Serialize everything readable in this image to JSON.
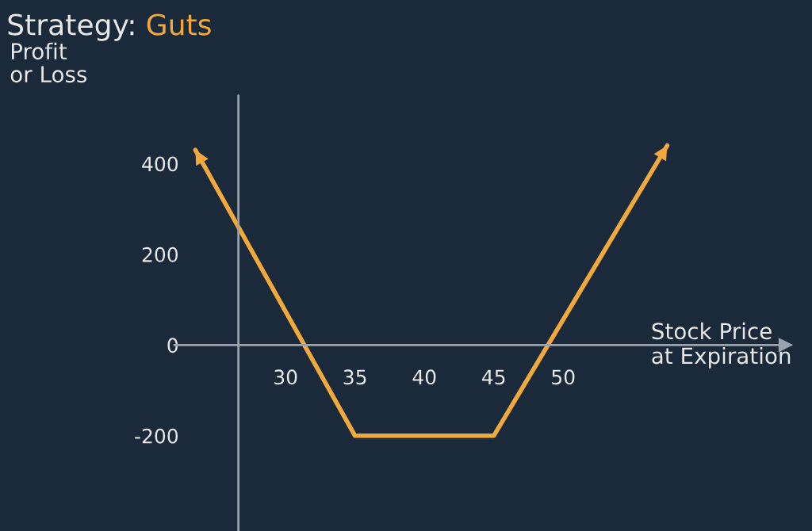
{
  "chart_data": {
    "type": "line",
    "title": "Strategy:",
    "subtitle": "Guts",
    "xlabel": "Stock Price\nat Expiration",
    "ylabel": "Profit\nor Loss",
    "series": [
      {
        "color": "#f2a93b",
        "x": [
          23.5,
          35,
          45,
          57.5
        ],
        "values": [
          430,
          -200,
          -200,
          440
        ]
      }
    ],
    "xlim": [
      22,
      66
    ],
    "ylim": [
      -410,
      550
    ],
    "xticks": [
      30,
      35,
      40,
      45,
      50
    ],
    "yticks": [
      -200,
      0,
      200,
      400
    ],
    "ref_lines": [
      {
        "axis": "x",
        "value": 26.6,
        "color": "#9aa3ad"
      }
    ],
    "grid": false,
    "marker": "none",
    "line_style": "solid"
  }
}
